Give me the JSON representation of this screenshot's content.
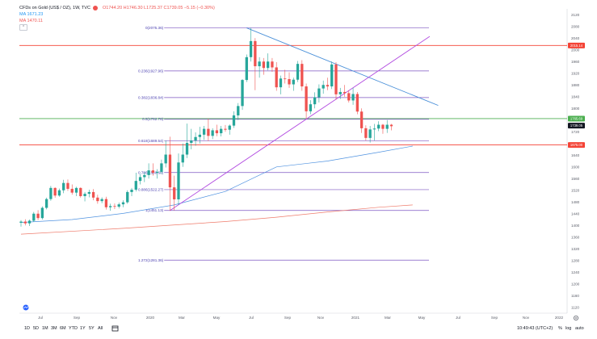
{
  "legend": {
    "title": "CFDs on Gold (US$ / OZ), 1W, TVC",
    "ohlc": "O1744.20 H1746.30 L1725.37 C1739.05 −5.15 (−0.30%)",
    "ma1_label": "MA",
    "ma1_value": "1671.23",
    "ma2_label": "MA",
    "ma2_value": "1470.11",
    "collapse_glyph": "^"
  },
  "bottom_bar": {
    "ranges": [
      "1D",
      "5D",
      "1M",
      "3M",
      "6M",
      "YTD",
      "1Y",
      "5Y",
      "All"
    ],
    "time": "10:49:43 (UTC+2)",
    "percent": "%",
    "log": "log",
    "auto": "auto"
  },
  "chart_data": {
    "type": "candlestick",
    "symbol": "CFDs on Gold (US$ / OZ)",
    "interval": "1W",
    "source": "TVC",
    "y_ticks": [
      1120,
      1160,
      1200,
      1240,
      1280,
      1320,
      1360,
      1400,
      1440,
      1480,
      1520,
      1560,
      1600,
      1640,
      1680,
      1720,
      1760,
      1800,
      1840,
      1880,
      1920,
      1960,
      2000,
      2040,
      2080,
      2120
    ],
    "x_ticks": [
      "Jul",
      "Sep",
      "Nov",
      "2020",
      "Mar",
      "May",
      "Jul",
      "Sep",
      "Nov",
      "2021",
      "Mar",
      "May",
      "Jul",
      "Sep",
      "Nov",
      "2022"
    ],
    "ylim": [
      1100,
      2140
    ],
    "weeks_to_last_candle": 92,
    "candles": [
      [
        1409,
        1418,
        1396,
        1413
      ],
      [
        1413,
        1421,
        1400,
        1407
      ],
      [
        1407,
        1420,
        1398,
        1416
      ],
      [
        1416,
        1446,
        1412,
        1440
      ],
      [
        1440,
        1452,
        1418,
        1425
      ],
      [
        1425,
        1465,
        1420,
        1460
      ],
      [
        1460,
        1495,
        1455,
        1490
      ],
      [
        1490,
        1535,
        1484,
        1528
      ],
      [
        1528,
        1530,
        1495,
        1502
      ],
      [
        1502,
        1526,
        1498,
        1520
      ],
      [
        1520,
        1556,
        1510,
        1545
      ],
      [
        1545,
        1557,
        1518,
        1525
      ],
      [
        1525,
        1540,
        1505,
        1512
      ],
      [
        1512,
        1532,
        1500,
        1528
      ],
      [
        1528,
        1530,
        1495,
        1500
      ],
      [
        1500,
        1514,
        1482,
        1508
      ],
      [
        1508,
        1522,
        1496,
        1514
      ],
      [
        1514,
        1524,
        1486,
        1495
      ],
      [
        1495,
        1505,
        1474,
        1483
      ],
      [
        1483,
        1496,
        1476,
        1490
      ],
      [
        1490,
        1498,
        1454,
        1462
      ],
      [
        1462,
        1474,
        1450,
        1466
      ],
      [
        1466,
        1475,
        1456,
        1464
      ],
      [
        1464,
        1478,
        1458,
        1472
      ],
      [
        1472,
        1486,
        1462,
        1479
      ],
      [
        1479,
        1520,
        1474,
        1514
      ],
      [
        1514,
        1528,
        1500,
        1522
      ],
      [
        1522,
        1580,
        1516,
        1552
      ],
      [
        1552,
        1575,
        1540,
        1565
      ],
      [
        1565,
        1582,
        1548,
        1572
      ],
      [
        1572,
        1612,
        1560,
        1588
      ],
      [
        1588,
        1612,
        1570,
        1580
      ],
      [
        1580,
        1592,
        1560,
        1583
      ],
      [
        1583,
        1625,
        1576,
        1612
      ],
      [
        1612,
        1690,
        1598,
        1642
      ],
      [
        1642,
        1703,
        1450,
        1530
      ],
      [
        1530,
        1570,
        1451,
        1489
      ],
      [
        1489,
        1646,
        1470,
        1615
      ],
      [
        1615,
        1680,
        1600,
        1642
      ],
      [
        1642,
        1748,
        1630,
        1682
      ],
      [
        1682,
        1730,
        1660,
        1690
      ],
      [
        1690,
        1718,
        1672,
        1702
      ],
      [
        1702,
        1737,
        1680,
        1710
      ],
      [
        1710,
        1740,
        1692,
        1730
      ],
      [
        1730,
        1765,
        1688,
        1706
      ],
      [
        1706,
        1732,
        1695,
        1725
      ],
      [
        1725,
        1744,
        1705,
        1715
      ],
      [
        1715,
        1740,
        1704,
        1730
      ],
      [
        1730,
        1743,
        1720,
        1727
      ],
      [
        1727,
        1745,
        1710,
        1741
      ],
      [
        1741,
        1790,
        1733,
        1776
      ],
      [
        1776,
        1818,
        1760,
        1808
      ],
      [
        1808,
        1900,
        1795,
        1897
      ],
      [
        1897,
        1984,
        1890,
        1975
      ],
      [
        1975,
        2075,
        1960,
        2030
      ],
      [
        2030,
        2040,
        1862,
        1944
      ],
      [
        1944,
        1975,
        1905,
        1960
      ],
      [
        1960,
        1972,
        1915,
        1938
      ],
      [
        1938,
        1988,
        1930,
        1960
      ],
      [
        1960,
        1972,
        1925,
        1940
      ],
      [
        1940,
        1958,
        1860,
        1872
      ],
      [
        1872,
        1912,
        1848,
        1902
      ],
      [
        1902,
        1932,
        1885,
        1900
      ],
      [
        1900,
        1923,
        1870,
        1882
      ],
      [
        1882,
        1905,
        1860,
        1898
      ],
      [
        1898,
        1962,
        1890,
        1952
      ],
      [
        1952,
        1965,
        1860,
        1875
      ],
      [
        1875,
        1885,
        1765,
        1790
      ],
      [
        1790,
        1828,
        1780,
        1814
      ],
      [
        1814,
        1855,
        1800,
        1838
      ],
      [
        1838,
        1882,
        1820,
        1868
      ],
      [
        1868,
        1895,
        1850,
        1880
      ],
      [
        1880,
        1905,
        1862,
        1875
      ],
      [
        1875,
        1960,
        1866,
        1950
      ],
      [
        1950,
        1958,
        1830,
        1848
      ],
      [
        1848,
        1870,
        1832,
        1856
      ],
      [
        1856,
        1880,
        1840,
        1852
      ],
      [
        1852,
        1862,
        1820,
        1827
      ],
      [
        1827,
        1870,
        1812,
        1849
      ],
      [
        1849,
        1856,
        1780,
        1789
      ],
      [
        1789,
        1800,
        1716,
        1732
      ],
      [
        1732,
        1742,
        1690,
        1699
      ],
      [
        1699,
        1740,
        1683,
        1728
      ],
      [
        1728,
        1747,
        1690,
        1731
      ],
      [
        1731,
        1756,
        1722,
        1744
      ],
      [
        1744,
        1747,
        1713,
        1730
      ],
      [
        1730,
        1760,
        1716,
        1744
      ],
      [
        1744,
        1747,
        1725,
        1739
      ]
    ],
    "sma_window_weeks_1": 50,
    "sma_window_weeks_2": 200,
    "sma_series": [
      {
        "name": "MA",
        "value": 1671.23,
        "color": "#4f92e0",
        "points": [
          [
            0,
            1410
          ],
          [
            12,
            1420
          ],
          [
            24,
            1441
          ],
          [
            36,
            1470
          ],
          [
            48,
            1516
          ],
          [
            60,
            1600
          ],
          [
            72,
            1620
          ],
          [
            84,
            1650
          ],
          [
            92,
            1671
          ]
        ]
      },
      {
        "name": "MA",
        "value": 1470.11,
        "color": "#ef7b6b",
        "points": [
          [
            0,
            1370
          ],
          [
            24,
            1390
          ],
          [
            48,
            1413
          ],
          [
            60,
            1428
          ],
          [
            72,
            1446
          ],
          [
            84,
            1462
          ],
          [
            92,
            1470
          ]
        ]
      }
    ],
    "fibonacci": [
      {
        "label": "0(2075.36)",
        "price": 2075.36
      },
      {
        "label": "0.236(1927.96)",
        "price": 1927.96
      },
      {
        "label": "0.382(1836.84)",
        "price": 1836.84
      },
      {
        "label": "0.5(1762.78)",
        "price": 1762.78
      },
      {
        "label": "0.618(1689.54)",
        "price": 1689.54
      },
      {
        "label": "0.786(1580.60)",
        "price": 1580.6
      },
      {
        "label": "0.886(1522.27)",
        "price": 1522.27
      },
      {
        "label": "1(1451.13)",
        "price": 1451.13
      },
      {
        "label": "1.272(1281.36)",
        "price": 1281.36
      }
    ],
    "fib_range_weeks": [
      34,
      82
    ],
    "horizontal_lines": [
      {
        "price": 2015.0,
        "color": "#f44336"
      },
      {
        "price": 1765.0,
        "color": "#4caf50"
      },
      {
        "price": 1675.0,
        "color": "#f44336"
      }
    ],
    "trendlines": [
      {
        "from": [
          53,
          2075
        ],
        "to": [
          98,
          1810
        ],
        "color": "#4a90d9"
      },
      {
        "from": [
          35,
          1451
        ],
        "to": [
          96,
          2046
        ],
        "color": "#b24be0"
      }
    ],
    "badges": [
      {
        "price": 2015.0,
        "text": "2015.14",
        "color": "#f44336"
      },
      {
        "price": 1765.0,
        "text": "1765.69",
        "color": "#4caf50"
      },
      {
        "price": 1741.0,
        "text": "1739.05",
        "color": "#131722"
      },
      {
        "price": 1675.0,
        "text": "1675.00",
        "color": "#f44336"
      }
    ],
    "bull_color": "#26a69a",
    "bear_color": "#ef5350"
  }
}
